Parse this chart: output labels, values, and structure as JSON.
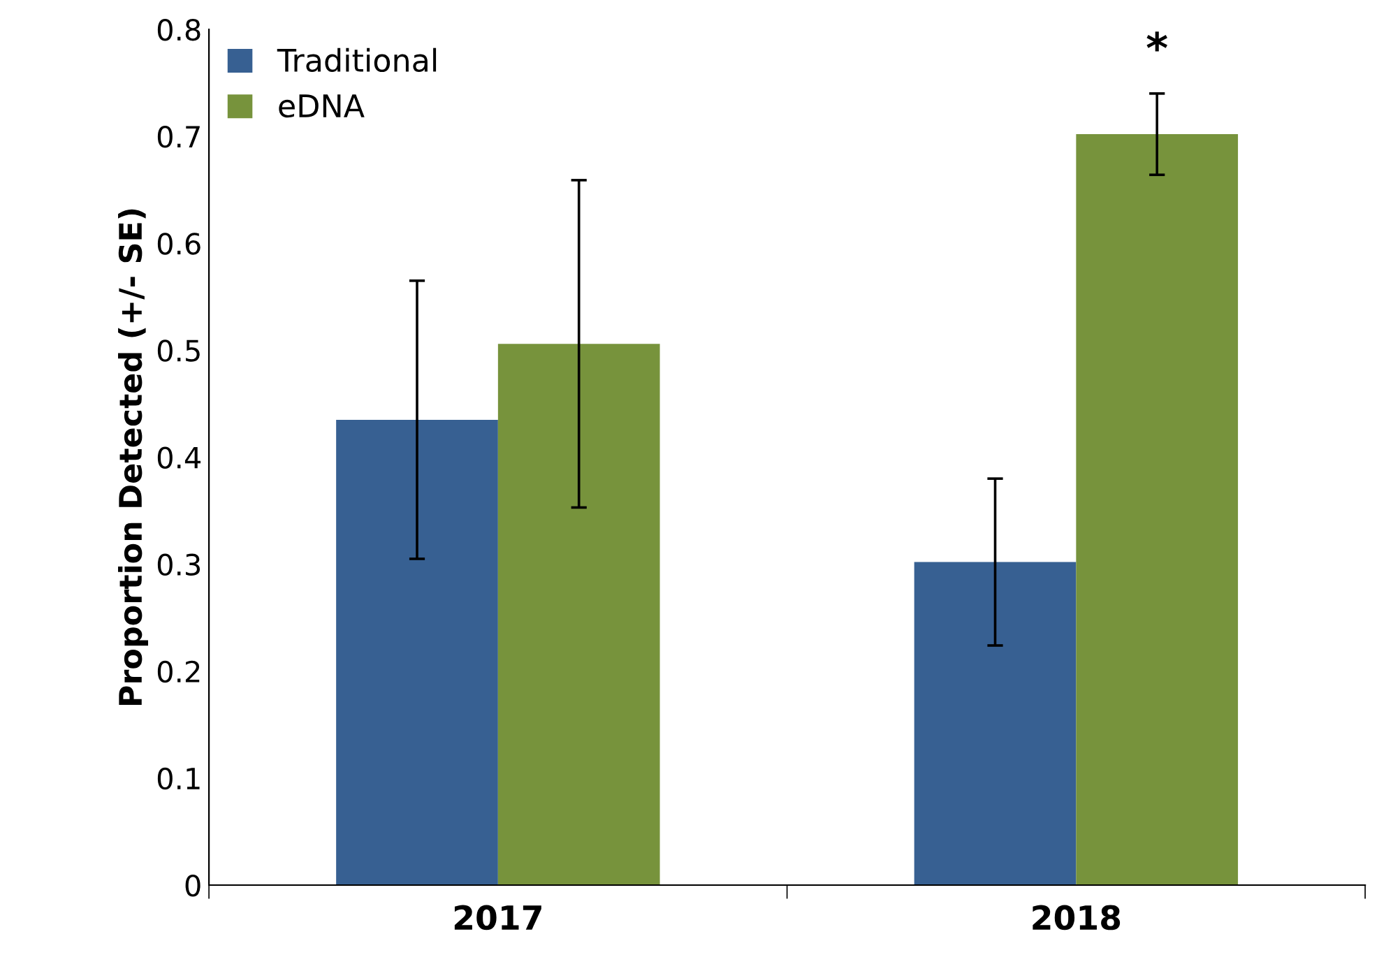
{
  "chart_data": {
    "type": "bar",
    "categories": [
      "2017",
      "2018"
    ],
    "series": [
      {
        "name": "Traditional",
        "color": "#376092",
        "values": [
          0.435,
          0.302
        ],
        "errors": [
          0.13,
          0.078
        ]
      },
      {
        "name": "eDNA",
        "color": "#77933c",
        "values": [
          0.506,
          0.702
        ],
        "errors": [
          0.153,
          0.038
        ]
      }
    ],
    "ylabel": "Proportion Detected (+/- SE)",
    "ylim": [
      0,
      0.8
    ],
    "yticks": [
      0,
      0.1,
      0.2,
      0.3,
      0.4,
      0.5,
      0.6,
      0.7,
      0.8
    ],
    "annotations": [
      "*"
    ],
    "legend": "top left",
    "grid": false
  }
}
